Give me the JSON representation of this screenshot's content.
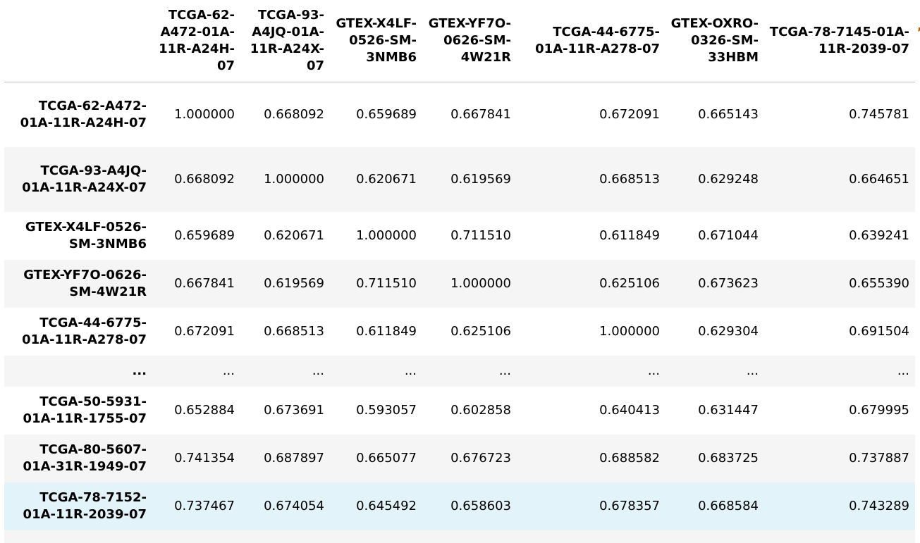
{
  "table": {
    "corner": "",
    "columns": [
      "TCGA-62-A472-01A-11R-A24H-07",
      "TCGA-93-A4JQ-01A-11R-A24X-07",
      "GTEX-X4LF-0526-SM-3NMB6",
      "GTEX-YF7O-0626-SM-4W21R",
      "TCGA-44-6775-01A-11R-A278-07",
      "GTEX-OXRO-0326-SM-33HBM",
      "TCGA-78-7145-01A-11R-2039-07"
    ],
    "rows": [
      {
        "index": "TCGA-62-A472-01A-11R-A24H-07",
        "values": [
          "1.000000",
          "0.668092",
          "0.659689",
          "0.667841",
          "0.672091",
          "0.665143",
          "0.745781"
        ]
      },
      {
        "index": "TCGA-93-A4JQ-01A-11R-A24X-07",
        "values": [
          "0.668092",
          "1.000000",
          "0.620671",
          "0.619569",
          "0.668513",
          "0.629248",
          "0.664651"
        ]
      },
      {
        "index": "GTEX-X4LF-0526-SM-3NMB6",
        "values": [
          "0.659689",
          "0.620671",
          "1.000000",
          "0.711510",
          "0.611849",
          "0.671044",
          "0.639241"
        ]
      },
      {
        "index": "GTEX-YF7O-0626-SM-4W21R",
        "values": [
          "0.667841",
          "0.619569",
          "0.711510",
          "1.000000",
          "0.625106",
          "0.673623",
          "0.655390"
        ]
      },
      {
        "index": "TCGA-44-6775-01A-11R-A278-07",
        "values": [
          "0.672091",
          "0.668513",
          "0.611849",
          "0.625106",
          "1.000000",
          "0.629304",
          "0.691504"
        ]
      },
      {
        "index": "...",
        "values": [
          "...",
          "...",
          "...",
          "...",
          "...",
          "...",
          "..."
        ]
      },
      {
        "index": "TCGA-50-5931-01A-11R-1755-07",
        "values": [
          "0.652884",
          "0.673691",
          "0.593057",
          "0.602858",
          "0.640413",
          "0.631447",
          "0.679995"
        ]
      },
      {
        "index": "TCGA-80-5607-01A-31R-1949-07",
        "values": [
          "0.741354",
          "0.687897",
          "0.665077",
          "0.676723",
          "0.688582",
          "0.683725",
          "0.737887"
        ]
      },
      {
        "index": "TCGA-78-7152-01A-11R-2039-07",
        "values": [
          "0.737467",
          "0.674054",
          "0.645492",
          "0.658603",
          "0.678357",
          "0.668584",
          "0.743289"
        ]
      }
    ]
  },
  "colors": {
    "stripe": "#f5f5f5",
    "hover": "#e2f3fa",
    "border": "#bdbdbd"
  }
}
